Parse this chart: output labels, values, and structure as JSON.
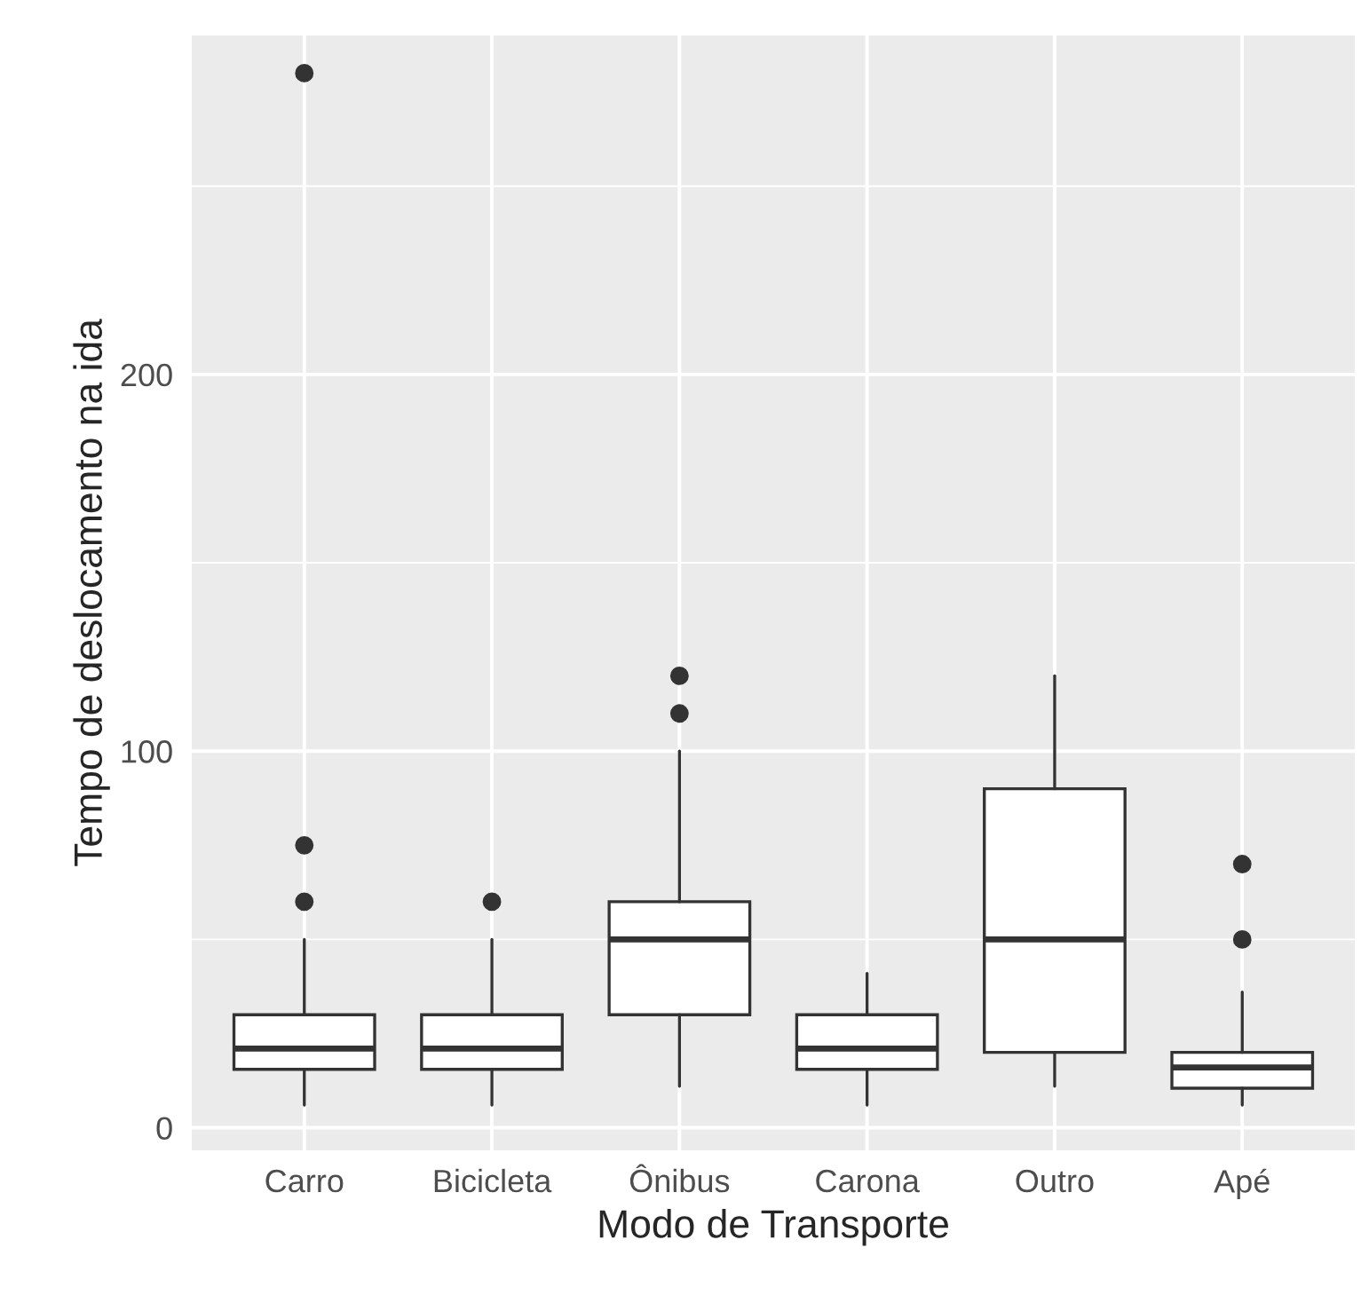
{
  "chart_data": {
    "type": "box",
    "xlabel": "Modo de Transporte",
    "ylabel": "Tempo de deslocamento na ida",
    "categories": [
      "Carro",
      "Bicicleta",
      "Ônibus",
      "Carona",
      "Outro",
      "Apé"
    ],
    "boxes": [
      {
        "low": 6,
        "q1": 15.5,
        "median": 21,
        "q3": 30,
        "high": 50,
        "outliers": [
          60,
          75,
          280
        ]
      },
      {
        "low": 6,
        "q1": 15.5,
        "median": 21,
        "q3": 30,
        "high": 50,
        "outliers": [
          60
        ]
      },
      {
        "low": 11,
        "q1": 30,
        "median": 50,
        "q3": 60,
        "high": 100,
        "outliers": [
          110,
          120
        ]
      },
      {
        "low": 6,
        "q1": 15.5,
        "median": 21,
        "q3": 30,
        "high": 41
      },
      {
        "low": 11,
        "q1": 20,
        "median": 50,
        "q3": 90,
        "high": 120
      },
      {
        "low": 6,
        "q1": 10.5,
        "median": 16,
        "q3": 20,
        "high": 36,
        "outliers": [
          50,
          70
        ]
      }
    ],
    "ylim": [
      -6,
      290
    ],
    "yticks": [
      0,
      100,
      200
    ],
    "grid": true,
    "color": "#ffffff"
  }
}
